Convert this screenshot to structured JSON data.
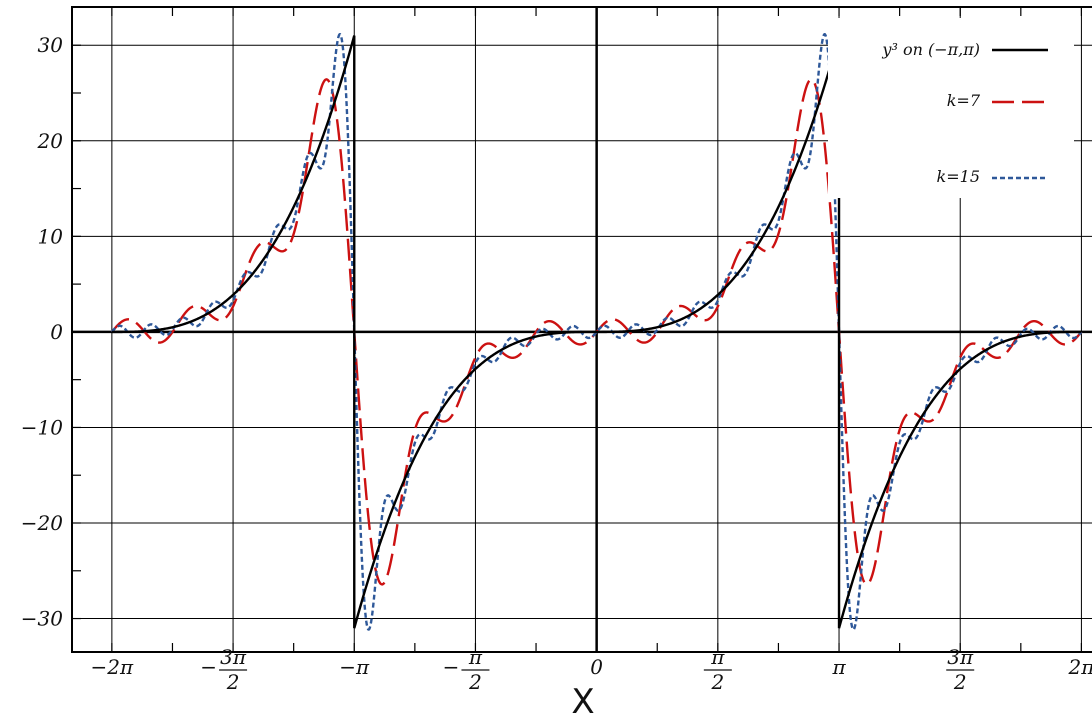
{
  "chart_data": {
    "type": "line",
    "xlabel": "X",
    "ylabel": "",
    "title": "",
    "xlim": [
      -6.8,
      6.55
    ],
    "ylim": [
      -33.5,
      34
    ],
    "grid": true,
    "legend_position": "top-right",
    "x_tick_labels": [
      {
        "x": -6.2832,
        "num": "−2π",
        "den": ""
      },
      {
        "x": -4.7124,
        "num": "−3π",
        "den": "2"
      },
      {
        "x": -3.1416,
        "num": "−π",
        "den": ""
      },
      {
        "x": -1.5708,
        "num": "−π",
        "den": "2"
      },
      {
        "x": 0,
        "num": "0",
        "den": ""
      },
      {
        "x": 1.5708,
        "num": "π",
        "den": "2"
      },
      {
        "x": 3.1416,
        "num": "π",
        "den": ""
      },
      {
        "x": 4.7124,
        "num": "3π",
        "den": "2"
      },
      {
        "x": 6.2832,
        "num": "2π",
        "den": ""
      }
    ],
    "y_tick_labels": [
      "30",
      "20",
      "10",
      "0",
      "−10",
      "−20",
      "−30"
    ],
    "y_tick_values": [
      30,
      20,
      10,
      0,
      -10,
      -20,
      -30
    ],
    "series": [
      {
        "name": "y³ on (−π,π)",
        "kind": "exact",
        "color": "#000000",
        "dash": "",
        "width": 2.4
      },
      {
        "name": "k=7",
        "kind": "fourier",
        "k": 7,
        "color": "#cc1111",
        "dash": "22 8",
        "width": 2.4
      },
      {
        "name": "k=15",
        "kind": "fourier",
        "k": 15,
        "color": "#2e5899",
        "dash": "5 3",
        "width": 2.4
      }
    ]
  }
}
